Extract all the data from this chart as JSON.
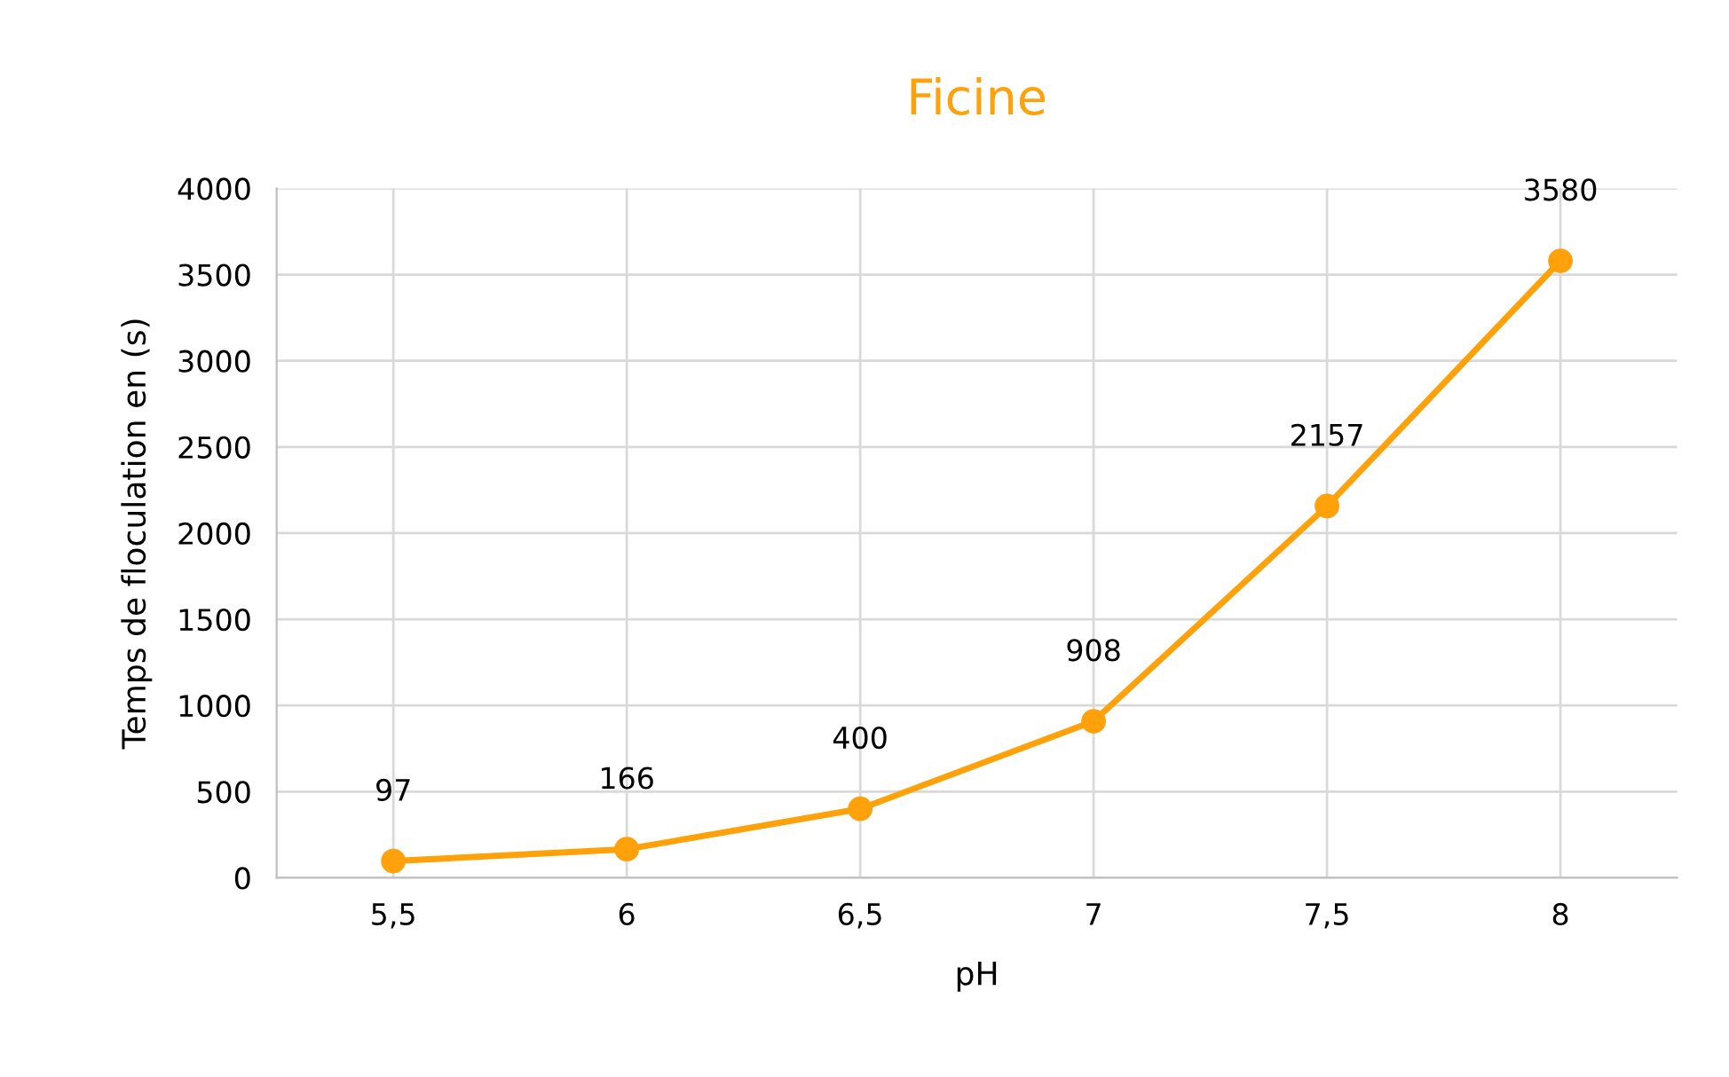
{
  "chart_data": {
    "type": "line",
    "title": "Ficine",
    "xlabel": "pH",
    "ylabel": "Temps de floculation en (s)",
    "categories": [
      "5,5",
      "6",
      "6,5",
      "7",
      "7,5",
      "8"
    ],
    "series": [
      {
        "color": "#ffa10a",
        "values": [
          97,
          166,
          400,
          908,
          2157,
          3580
        ]
      }
    ],
    "ylim": [
      0,
      4000
    ],
    "yticks": [
      0,
      500,
      1000,
      1500,
      2000,
      2500,
      3000,
      3500,
      4000
    ],
    "grid": true,
    "data_labels": true,
    "marker": "circle",
    "line_style": "solid"
  }
}
